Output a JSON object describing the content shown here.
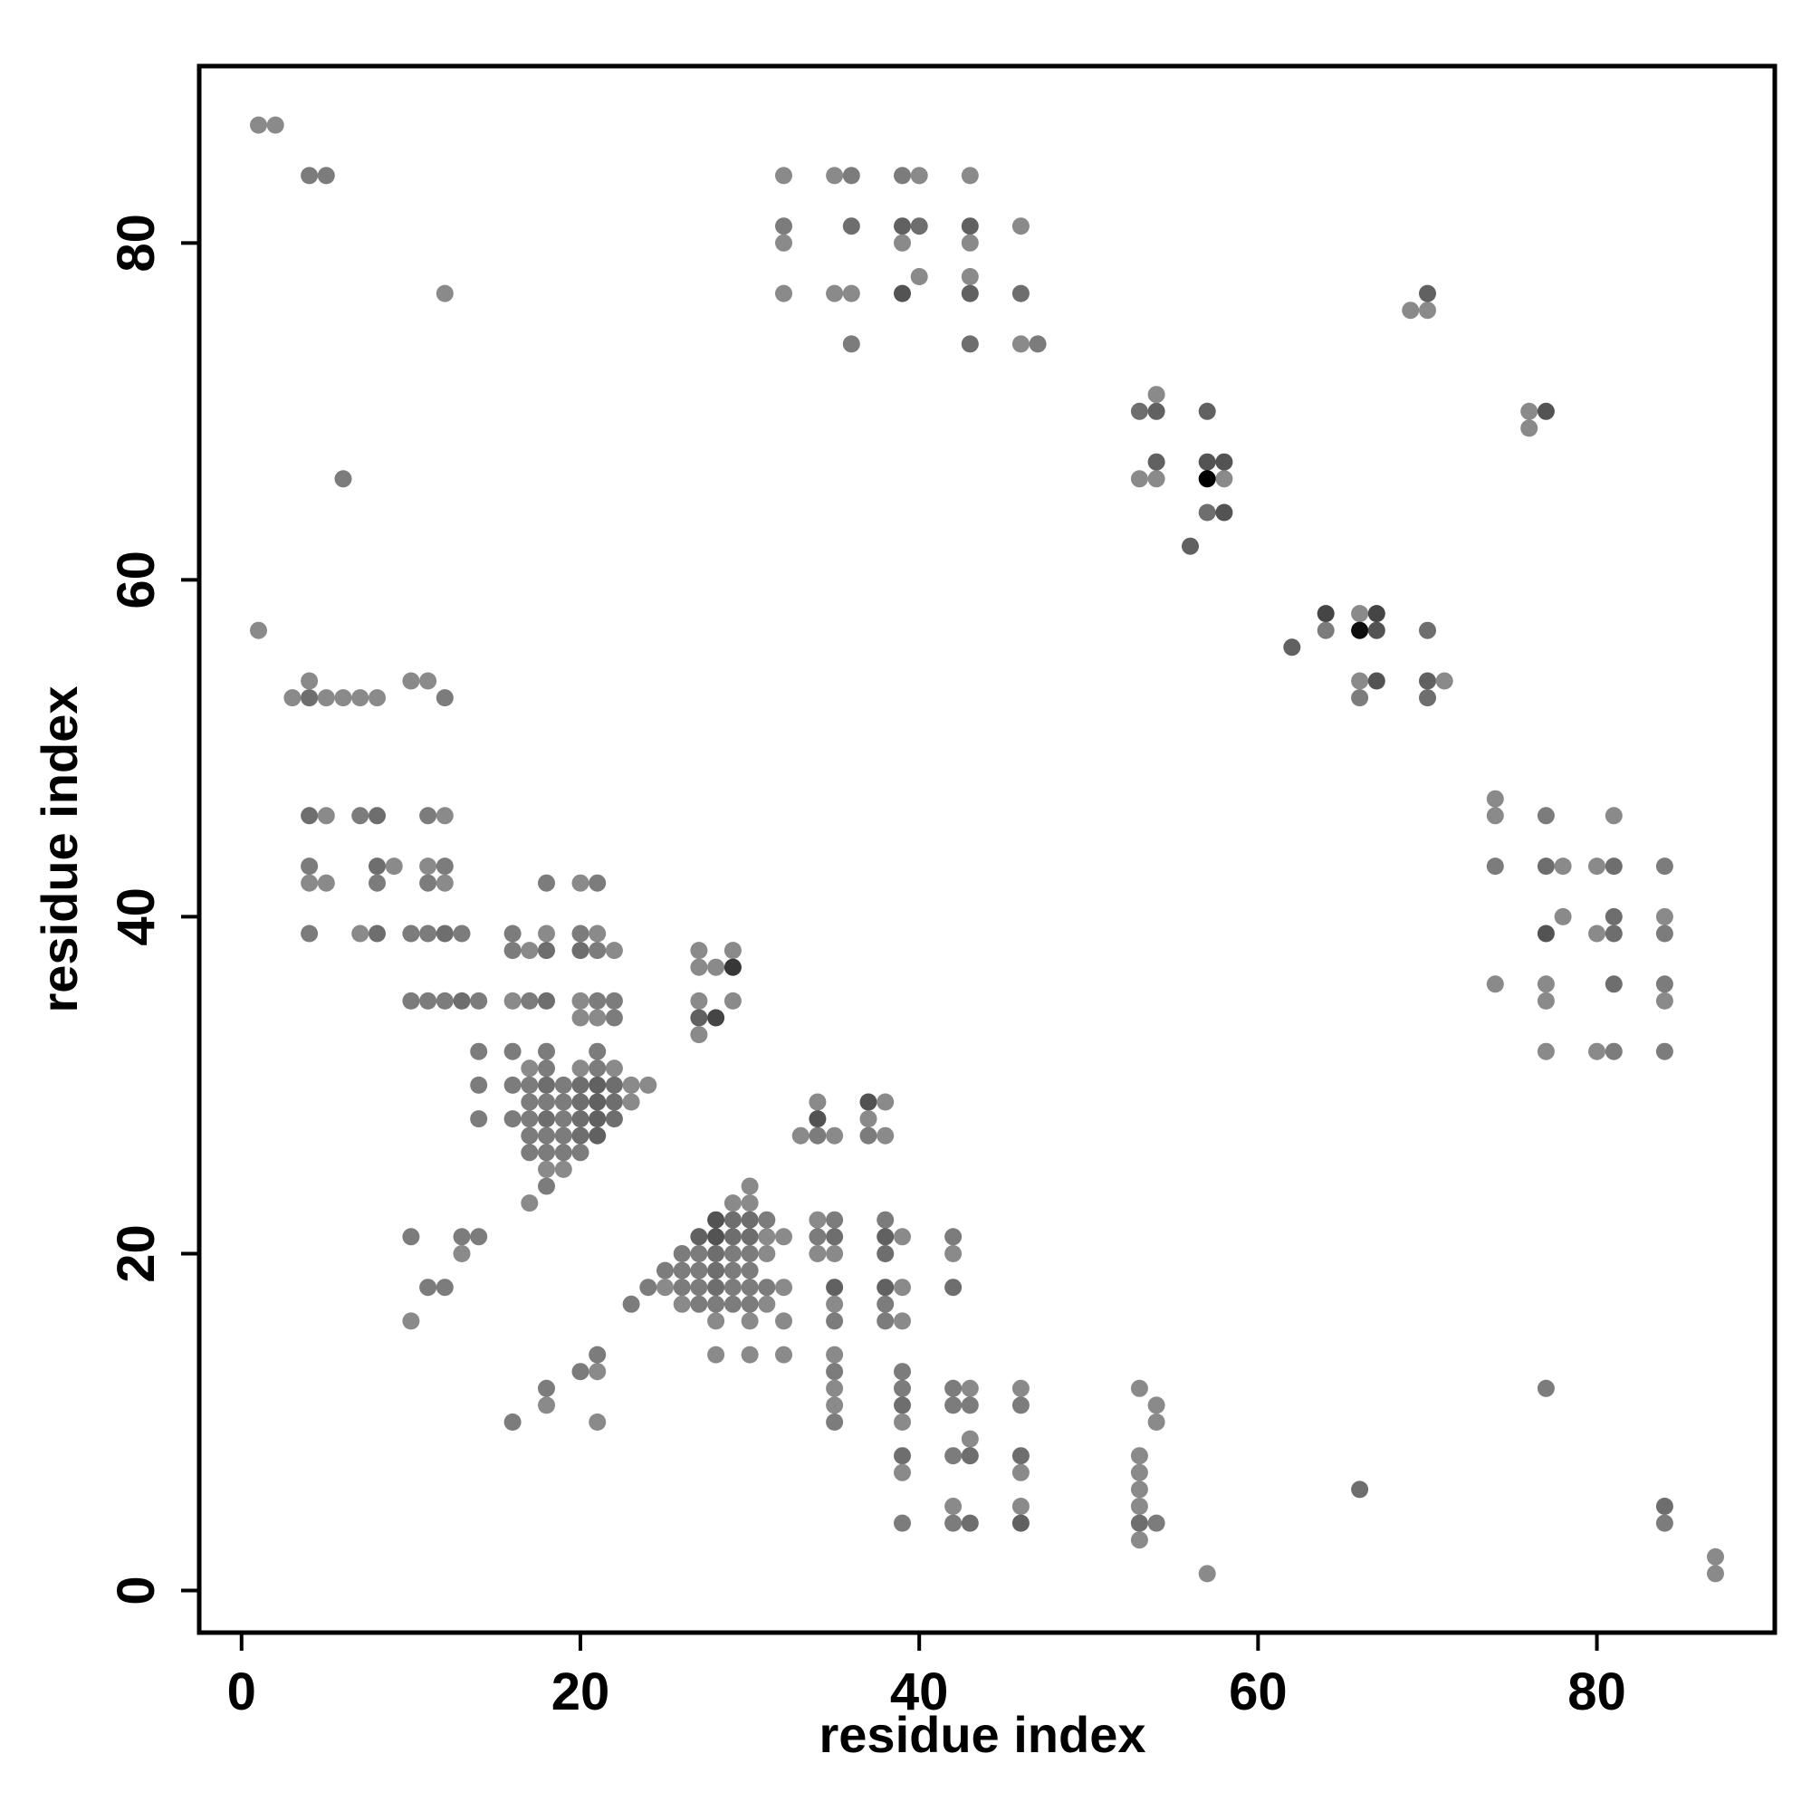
{
  "chart_data": {
    "type": "scatter",
    "title": "",
    "xlabel": "residue index",
    "ylabel": "residue index",
    "xlim": [
      -2.5,
      90.5
    ],
    "ylim": [
      -2.5,
      90.5
    ],
    "x_ticks": [
      0,
      20,
      40,
      60,
      80
    ],
    "y_ticks": [
      0,
      20,
      40,
      60,
      80
    ],
    "grid": false,
    "legend": "none",
    "marker_color_range": [
      "#8a8a8a",
      "#000000"
    ],
    "points": [
      [
        1,
        87,
        0.5
      ],
      [
        2,
        87,
        0.5
      ],
      [
        4,
        84,
        0.55
      ],
      [
        5,
        84,
        0.55
      ],
      [
        12,
        77,
        0.5
      ],
      [
        6,
        66,
        0.55
      ],
      [
        1,
        57,
        0.5
      ],
      [
        3,
        53,
        0.5
      ],
      [
        4,
        53,
        0.6
      ],
      [
        5,
        53,
        0.5
      ],
      [
        6,
        53,
        0.5
      ],
      [
        7,
        53,
        0.5
      ],
      [
        8,
        53,
        0.5
      ],
      [
        4,
        54,
        0.5
      ],
      [
        10,
        54,
        0.5
      ],
      [
        11,
        54,
        0.5
      ],
      [
        12,
        53,
        0.55
      ],
      [
        4,
        46,
        0.6
      ],
      [
        5,
        46,
        0.5
      ],
      [
        7,
        46,
        0.55
      ],
      [
        8,
        46,
        0.6
      ],
      [
        11,
        46,
        0.55
      ],
      [
        12,
        46,
        0.5
      ],
      [
        4,
        43,
        0.55
      ],
      [
        8,
        43,
        0.6
      ],
      [
        9,
        43,
        0.5
      ],
      [
        11,
        43,
        0.5
      ],
      [
        12,
        43,
        0.55
      ],
      [
        4,
        42,
        0.5
      ],
      [
        5,
        42,
        0.5
      ],
      [
        8,
        42,
        0.55
      ],
      [
        11,
        42,
        0.55
      ],
      [
        12,
        42,
        0.5
      ],
      [
        4,
        39,
        0.55
      ],
      [
        7,
        39,
        0.5
      ],
      [
        8,
        39,
        0.6
      ],
      [
        10,
        39,
        0.55
      ],
      [
        11,
        39,
        0.55
      ],
      [
        12,
        39,
        0.6
      ],
      [
        13,
        39,
        0.55
      ],
      [
        10,
        35,
        0.55
      ],
      [
        11,
        35,
        0.55
      ],
      [
        12,
        35,
        0.55
      ],
      [
        13,
        35,
        0.6
      ],
      [
        14,
        35,
        0.55
      ],
      [
        16,
        39,
        0.55
      ],
      [
        18,
        39,
        0.5
      ],
      [
        20,
        39,
        0.55
      ],
      [
        21,
        39,
        0.5
      ],
      [
        16,
        38,
        0.55
      ],
      [
        17,
        38,
        0.5
      ],
      [
        18,
        38,
        0.6
      ],
      [
        20,
        38,
        0.6
      ],
      [
        21,
        38,
        0.55
      ],
      [
        22,
        38,
        0.5
      ],
      [
        18,
        42,
        0.55
      ],
      [
        20,
        42,
        0.5
      ],
      [
        21,
        42,
        0.55
      ],
      [
        16,
        35,
        0.5
      ],
      [
        17,
        35,
        0.55
      ],
      [
        18,
        35,
        0.6
      ],
      [
        20,
        35,
        0.5
      ],
      [
        21,
        35,
        0.55
      ],
      [
        22,
        35,
        0.55
      ],
      [
        20,
        34,
        0.5
      ],
      [
        21,
        34,
        0.5
      ],
      [
        22,
        34,
        0.55
      ],
      [
        27,
        38,
        0.5
      ],
      [
        29,
        38,
        0.5
      ],
      [
        27,
        37,
        0.5
      ],
      [
        28,
        37,
        0.5
      ],
      [
        29,
        37,
        0.8
      ],
      [
        27,
        35,
        0.5
      ],
      [
        29,
        35,
        0.5
      ],
      [
        27,
        34,
        0.65
      ],
      [
        28,
        34,
        0.75
      ],
      [
        27,
        33,
        0.5
      ],
      [
        14,
        32,
        0.55
      ],
      [
        16,
        32,
        0.55
      ],
      [
        18,
        32,
        0.55
      ],
      [
        21,
        32,
        0.55
      ],
      [
        17,
        31,
        0.5
      ],
      [
        18,
        31,
        0.55
      ],
      [
        20,
        31,
        0.5
      ],
      [
        21,
        31,
        0.55
      ],
      [
        22,
        31,
        0.5
      ],
      [
        14,
        30,
        0.55
      ],
      [
        16,
        30,
        0.55
      ],
      [
        17,
        30,
        0.55
      ],
      [
        18,
        30,
        0.6
      ],
      [
        19,
        30,
        0.55
      ],
      [
        20,
        30,
        0.6
      ],
      [
        21,
        30,
        0.65
      ],
      [
        22,
        30,
        0.6
      ],
      [
        23,
        30,
        0.5
      ],
      [
        24,
        30,
        0.5
      ],
      [
        17,
        29,
        0.55
      ],
      [
        18,
        29,
        0.55
      ],
      [
        19,
        29,
        0.55
      ],
      [
        20,
        29,
        0.6
      ],
      [
        21,
        29,
        0.65
      ],
      [
        22,
        29,
        0.6
      ],
      [
        23,
        29,
        0.5
      ],
      [
        14,
        28,
        0.55
      ],
      [
        16,
        28,
        0.55
      ],
      [
        17,
        28,
        0.55
      ],
      [
        18,
        28,
        0.6
      ],
      [
        19,
        28,
        0.55
      ],
      [
        20,
        28,
        0.6
      ],
      [
        21,
        28,
        0.65
      ],
      [
        22,
        28,
        0.6
      ],
      [
        17,
        27,
        0.55
      ],
      [
        18,
        27,
        0.55
      ],
      [
        19,
        27,
        0.55
      ],
      [
        20,
        27,
        0.6
      ],
      [
        21,
        27,
        0.65
      ],
      [
        17,
        26,
        0.55
      ],
      [
        18,
        26,
        0.55
      ],
      [
        19,
        26,
        0.55
      ],
      [
        20,
        26,
        0.55
      ],
      [
        18,
        25,
        0.5
      ],
      [
        19,
        25,
        0.5
      ],
      [
        18,
        24,
        0.55
      ],
      [
        17,
        23,
        0.5
      ],
      [
        34,
        29,
        0.5
      ],
      [
        37,
        29,
        0.7
      ],
      [
        38,
        29,
        0.5
      ],
      [
        34,
        28,
        0.7
      ],
      [
        37,
        28,
        0.5
      ],
      [
        33,
        27,
        0.5
      ],
      [
        34,
        27,
        0.55
      ],
      [
        35,
        27,
        0.5
      ],
      [
        37,
        27,
        0.55
      ],
      [
        38,
        27,
        0.5
      ],
      [
        30,
        24,
        0.5
      ],
      [
        29,
        23,
        0.5
      ],
      [
        30,
        23,
        0.5
      ],
      [
        28,
        22,
        0.7
      ],
      [
        29,
        22,
        0.6
      ],
      [
        30,
        22,
        0.6
      ],
      [
        31,
        22,
        0.55
      ],
      [
        34,
        22,
        0.5
      ],
      [
        35,
        22,
        0.55
      ],
      [
        38,
        22,
        0.55
      ],
      [
        27,
        21,
        0.65
      ],
      [
        28,
        21,
        0.7
      ],
      [
        29,
        21,
        0.6
      ],
      [
        30,
        21,
        0.6
      ],
      [
        31,
        21,
        0.5
      ],
      [
        32,
        21,
        0.5
      ],
      [
        34,
        21,
        0.55
      ],
      [
        35,
        21,
        0.6
      ],
      [
        38,
        21,
        0.65
      ],
      [
        39,
        21,
        0.5
      ],
      [
        42,
        21,
        0.55
      ],
      [
        26,
        20,
        0.55
      ],
      [
        27,
        20,
        0.55
      ],
      [
        28,
        20,
        0.6
      ],
      [
        29,
        20,
        0.55
      ],
      [
        30,
        20,
        0.55
      ],
      [
        31,
        20,
        0.5
      ],
      [
        34,
        20,
        0.5
      ],
      [
        35,
        20,
        0.5
      ],
      [
        38,
        20,
        0.6
      ],
      [
        42,
        20,
        0.5
      ],
      [
        25,
        19,
        0.55
      ],
      [
        26,
        19,
        0.55
      ],
      [
        27,
        19,
        0.55
      ],
      [
        28,
        19,
        0.6
      ],
      [
        29,
        19,
        0.55
      ],
      [
        30,
        19,
        0.55
      ],
      [
        24,
        18,
        0.55
      ],
      [
        25,
        18,
        0.5
      ],
      [
        26,
        18,
        0.55
      ],
      [
        27,
        18,
        0.55
      ],
      [
        28,
        18,
        0.6
      ],
      [
        29,
        18,
        0.55
      ],
      [
        30,
        18,
        0.55
      ],
      [
        31,
        18,
        0.55
      ],
      [
        32,
        18,
        0.5
      ],
      [
        35,
        18,
        0.65
      ],
      [
        38,
        18,
        0.65
      ],
      [
        39,
        18,
        0.5
      ],
      [
        42,
        18,
        0.6
      ],
      [
        23,
        17,
        0.55
      ],
      [
        26,
        17,
        0.5
      ],
      [
        27,
        17,
        0.55
      ],
      [
        28,
        17,
        0.55
      ],
      [
        29,
        17,
        0.55
      ],
      [
        30,
        17,
        0.55
      ],
      [
        31,
        17,
        0.5
      ],
      [
        35,
        17,
        0.5
      ],
      [
        38,
        17,
        0.55
      ],
      [
        28,
        16,
        0.5
      ],
      [
        30,
        16,
        0.5
      ],
      [
        32,
        16,
        0.5
      ],
      [
        35,
        16,
        0.55
      ],
      [
        38,
        16,
        0.55
      ],
      [
        39,
        16,
        0.5
      ],
      [
        28,
        14,
        0.5
      ],
      [
        30,
        14,
        0.5
      ],
      [
        32,
        14,
        0.5
      ],
      [
        35,
        14,
        0.5
      ],
      [
        35,
        13,
        0.55
      ],
      [
        39,
        13,
        0.55
      ],
      [
        35,
        12,
        0.5
      ],
      [
        39,
        12,
        0.55
      ],
      [
        42,
        12,
        0.55
      ],
      [
        43,
        12,
        0.5
      ],
      [
        46,
        12,
        0.5
      ],
      [
        53,
        12,
        0.5
      ],
      [
        35,
        11,
        0.5
      ],
      [
        39,
        11,
        0.6
      ],
      [
        42,
        11,
        0.55
      ],
      [
        43,
        11,
        0.55
      ],
      [
        46,
        11,
        0.55
      ],
      [
        54,
        11,
        0.5
      ],
      [
        35,
        10,
        0.55
      ],
      [
        39,
        10,
        0.5
      ],
      [
        54,
        10,
        0.5
      ],
      [
        43,
        9,
        0.5
      ],
      [
        39,
        8,
        0.6
      ],
      [
        42,
        8,
        0.55
      ],
      [
        43,
        8,
        0.6
      ],
      [
        46,
        8,
        0.6
      ],
      [
        53,
        8,
        0.5
      ],
      [
        39,
        7,
        0.5
      ],
      [
        46,
        7,
        0.5
      ],
      [
        53,
        7,
        0.5
      ],
      [
        53,
        6,
        0.5
      ],
      [
        42,
        5,
        0.5
      ],
      [
        46,
        5,
        0.5
      ],
      [
        53,
        5,
        0.5
      ],
      [
        39,
        4,
        0.55
      ],
      [
        42,
        4,
        0.55
      ],
      [
        43,
        4,
        0.6
      ],
      [
        46,
        4,
        0.65
      ],
      [
        53,
        4,
        0.6
      ],
      [
        54,
        4,
        0.55
      ],
      [
        53,
        3,
        0.5
      ],
      [
        10,
        21,
        0.55
      ],
      [
        13,
        21,
        0.55
      ],
      [
        14,
        21,
        0.55
      ],
      [
        13,
        20,
        0.5
      ],
      [
        11,
        18,
        0.55
      ],
      [
        12,
        18,
        0.55
      ],
      [
        10,
        16,
        0.5
      ],
      [
        18,
        12,
        0.55
      ],
      [
        20,
        13,
        0.55
      ],
      [
        21,
        13,
        0.5
      ],
      [
        21,
        14,
        0.55
      ],
      [
        18,
        11,
        0.5
      ],
      [
        16,
        10,
        0.55
      ],
      [
        21,
        10,
        0.5
      ],
      [
        32,
        84,
        0.5
      ],
      [
        35,
        84,
        0.5
      ],
      [
        36,
        84,
        0.55
      ],
      [
        39,
        84,
        0.55
      ],
      [
        40,
        84,
        0.5
      ],
      [
        43,
        84,
        0.5
      ],
      [
        32,
        81,
        0.55
      ],
      [
        36,
        81,
        0.6
      ],
      [
        39,
        81,
        0.65
      ],
      [
        40,
        81,
        0.6
      ],
      [
        43,
        81,
        0.65
      ],
      [
        46,
        81,
        0.5
      ],
      [
        32,
        80,
        0.5
      ],
      [
        39,
        80,
        0.5
      ],
      [
        43,
        80,
        0.5
      ],
      [
        40,
        78,
        0.5
      ],
      [
        43,
        78,
        0.5
      ],
      [
        32,
        77,
        0.5
      ],
      [
        35,
        77,
        0.5
      ],
      [
        36,
        77,
        0.5
      ],
      [
        39,
        77,
        0.7
      ],
      [
        43,
        77,
        0.65
      ],
      [
        46,
        77,
        0.6
      ],
      [
        36,
        74,
        0.55
      ],
      [
        43,
        74,
        0.6
      ],
      [
        46,
        74,
        0.5
      ],
      [
        47,
        74,
        0.55
      ],
      [
        69,
        76,
        0.5
      ],
      [
        70,
        76,
        0.5
      ],
      [
        70,
        77,
        0.65
      ],
      [
        53,
        70,
        0.6
      ],
      [
        54,
        70,
        0.65
      ],
      [
        54,
        71,
        0.5
      ],
      [
        57,
        70,
        0.65
      ],
      [
        54,
        67,
        0.65
      ],
      [
        57,
        67,
        0.7
      ],
      [
        58,
        67,
        0.7
      ],
      [
        53,
        66,
        0.5
      ],
      [
        54,
        66,
        0.5
      ],
      [
        57,
        66,
        1.0
      ],
      [
        58,
        66,
        0.5
      ],
      [
        57,
        64,
        0.6
      ],
      [
        58,
        64,
        0.7
      ],
      [
        56,
        62,
        0.65
      ],
      [
        76,
        69,
        0.5
      ],
      [
        76,
        70,
        0.5
      ],
      [
        77,
        70,
        0.7
      ],
      [
        62,
        56,
        0.65
      ],
      [
        64,
        58,
        0.75
      ],
      [
        66,
        58,
        0.5
      ],
      [
        67,
        58,
        0.75
      ],
      [
        64,
        57,
        0.55
      ],
      [
        66,
        57,
        0.95
      ],
      [
        67,
        57,
        0.7
      ],
      [
        70,
        57,
        0.6
      ],
      [
        66,
        54,
        0.5
      ],
      [
        67,
        54,
        0.7
      ],
      [
        70,
        54,
        0.65
      ],
      [
        71,
        54,
        0.5
      ],
      [
        66,
        53,
        0.55
      ],
      [
        70,
        53,
        0.6
      ],
      [
        74,
        47,
        0.5
      ],
      [
        74,
        46,
        0.5
      ],
      [
        77,
        46,
        0.55
      ],
      [
        81,
        46,
        0.5
      ],
      [
        74,
        43,
        0.55
      ],
      [
        77,
        43,
        0.6
      ],
      [
        78,
        43,
        0.5
      ],
      [
        80,
        43,
        0.5
      ],
      [
        81,
        43,
        0.6
      ],
      [
        84,
        43,
        0.55
      ],
      [
        78,
        40,
        0.5
      ],
      [
        81,
        40,
        0.6
      ],
      [
        84,
        40,
        0.5
      ],
      [
        77,
        39,
        0.7
      ],
      [
        80,
        39,
        0.5
      ],
      [
        81,
        39,
        0.6
      ],
      [
        84,
        39,
        0.55
      ],
      [
        74,
        36,
        0.5
      ],
      [
        77,
        36,
        0.5
      ],
      [
        81,
        36,
        0.6
      ],
      [
        84,
        36,
        0.55
      ],
      [
        77,
        35,
        0.5
      ],
      [
        84,
        35,
        0.5
      ],
      [
        77,
        32,
        0.5
      ],
      [
        80,
        32,
        0.5
      ],
      [
        81,
        32,
        0.55
      ],
      [
        84,
        32,
        0.55
      ],
      [
        77,
        12,
        0.55
      ],
      [
        66,
        6,
        0.6
      ],
      [
        84,
        5,
        0.6
      ],
      [
        84,
        4,
        0.55
      ],
      [
        57,
        1,
        0.5
      ],
      [
        87,
        2,
        0.5
      ],
      [
        87,
        1,
        0.5
      ]
    ]
  }
}
